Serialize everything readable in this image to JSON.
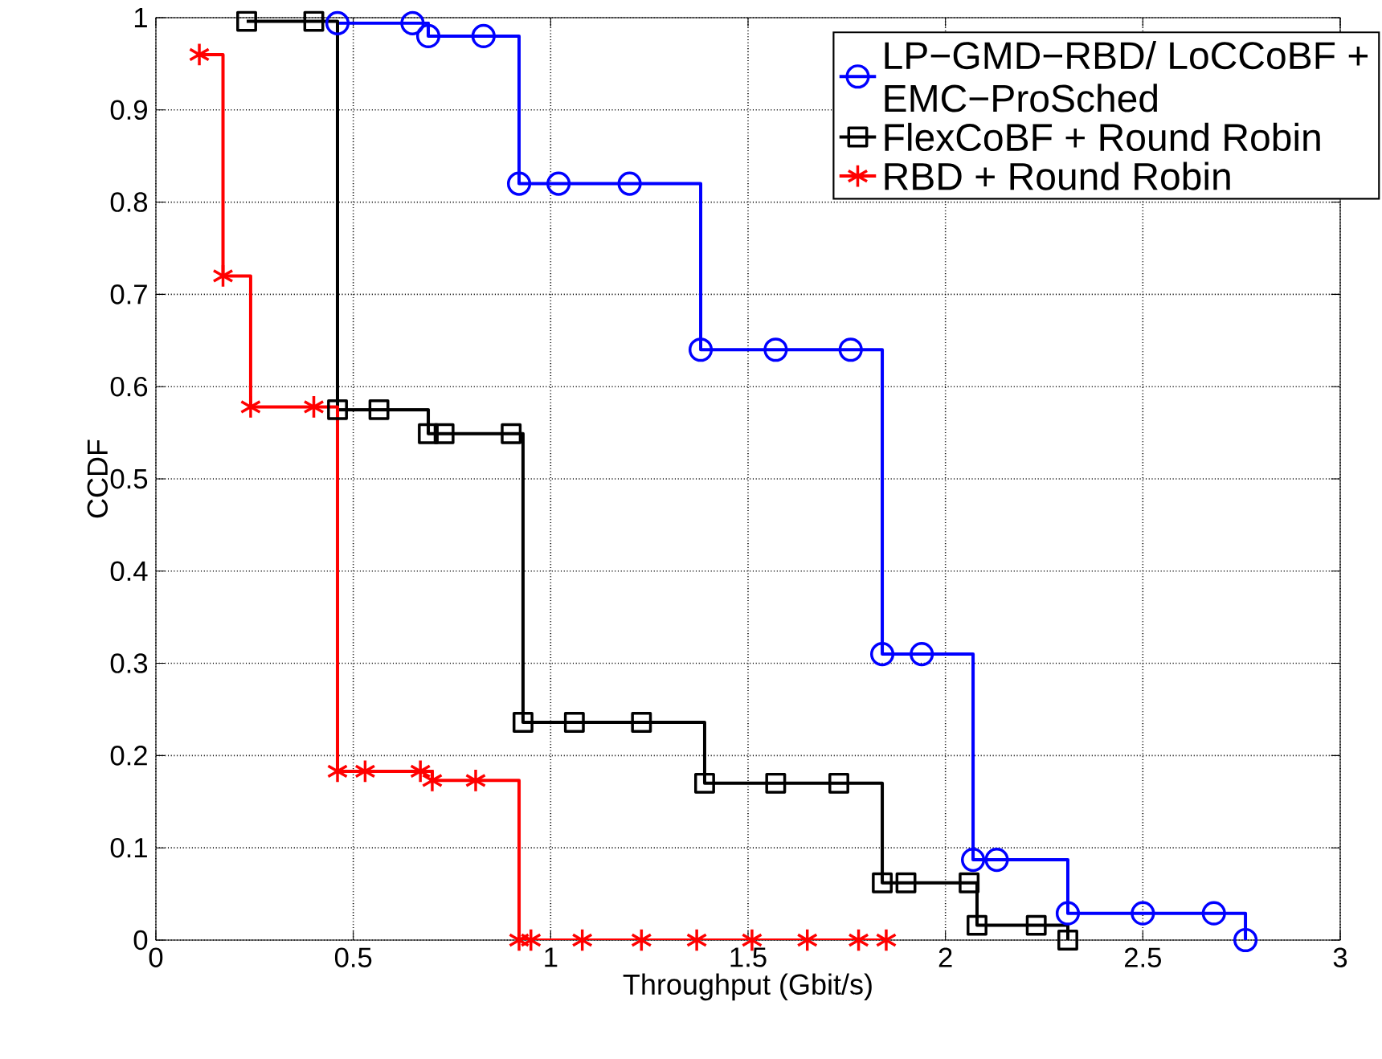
{
  "chart_data": {
    "type": "step",
    "xlabel": "Throughput (Gbit/s)",
    "ylabel": "CCDF",
    "xlim": [
      0,
      3
    ],
    "ylim": [
      0,
      1
    ],
    "xticks": [
      0,
      0.5,
      1,
      1.5,
      2,
      2.5,
      3
    ],
    "yticks": [
      0,
      0.1,
      0.2,
      0.3,
      0.4,
      0.5,
      0.6,
      0.7,
      0.8,
      0.9,
      1
    ],
    "grid": true,
    "legend": "top right",
    "line_style": "solid",
    "series": [
      {
        "name": "LP−GMD−RBD/ LoCCoBF + EMC−ProSched",
        "color": "#0000ff",
        "marker": "circle",
        "x": [
          0.46,
          0.65,
          0.69,
          0.83,
          0.92,
          1.02,
          1.2,
          1.38,
          1.57,
          1.76,
          1.84,
          1.94,
          2.07,
          2.13,
          2.31,
          2.5,
          2.68,
          2.76
        ],
        "values": [
          0.994,
          0.994,
          0.98,
          0.98,
          0.82,
          0.82,
          0.82,
          0.64,
          0.64,
          0.64,
          0.31,
          0.31,
          0.087,
          0.087,
          0.029,
          0.029,
          0.029,
          0
        ]
      },
      {
        "name": "FlexCoBF + Round Robin",
        "color": "#000000",
        "marker": "square",
        "x": [
          0.23,
          0.4,
          0.46,
          0.565,
          0.69,
          0.73,
          0.9,
          0.93,
          1.06,
          1.23,
          1.39,
          1.57,
          1.73,
          1.84,
          1.9,
          2.06,
          2.08,
          2.23,
          2.31
        ],
        "values": [
          0.996,
          0.996,
          0.575,
          0.575,
          0.549,
          0.549,
          0.549,
          0.236,
          0.236,
          0.236,
          0.17,
          0.17,
          0.17,
          0.062,
          0.062,
          0.062,
          0.016,
          0.016,
          0
        ]
      },
      {
        "name": "RBD + Round Robin",
        "color": "#ff0000",
        "marker": "cross",
        "x": [
          0.11,
          0.17,
          0.24,
          0.4,
          0.46,
          0.53,
          0.67,
          0.7,
          0.81,
          0.92,
          0.95,
          1.08,
          1.23,
          1.37,
          1.51,
          1.65,
          1.78,
          1.85
        ],
        "values": [
          0.96,
          0.72,
          0.578,
          0.578,
          0.183,
          0.183,
          0.183,
          0.173,
          0.173,
          0,
          0,
          0,
          0,
          0,
          0,
          0,
          0,
          0
        ]
      }
    ]
  }
}
